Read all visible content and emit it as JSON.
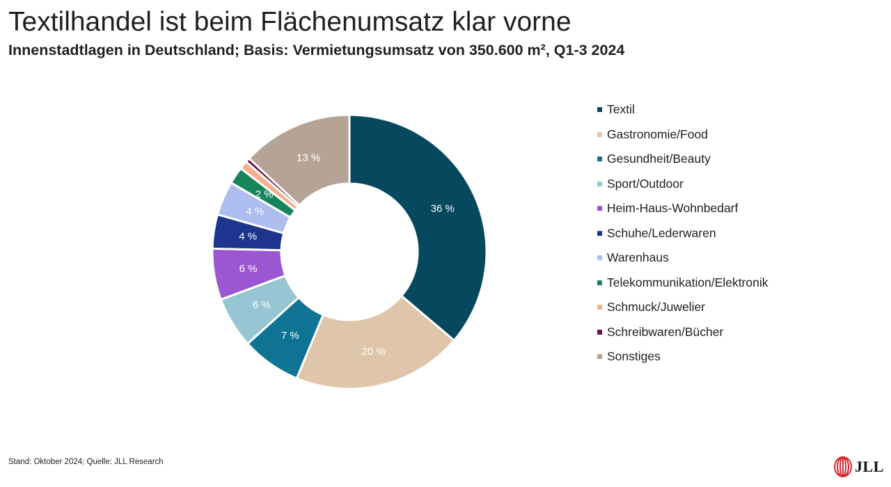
{
  "header": {
    "title": "Textilhandel ist beim Flächenumsatz klar vorne",
    "subtitle": "Innenstadtlagen in Deutschland; Basis: Vermietungsumsatz von 350.600 m², Q1-3 2024"
  },
  "chart_data": {
    "type": "pie",
    "variant": "donut",
    "title": "Textilhandel ist beim Flächenumsatz klar vorne",
    "subtitle": "Innenstadtlagen in Deutschland; Basis: Vermietungsumsatz von 350.600 m², Q1-3 2024",
    "legend_position": "right",
    "categories": [
      "Textil",
      "Gastronomie/Food",
      "Gesundheit/Beauty",
      "Sport/Outdoor",
      "Heim-Haus-Wohnbedarf",
      "Schuhe/Lederwaren",
      "Warenhaus",
      "Telekommunikation/Elektronik",
      "Schmuck/Juwelier",
      "Schreibwaren/Bücher",
      "Sonstiges"
    ],
    "values": [
      36,
      20,
      7,
      6,
      6,
      4,
      4,
      2,
      1,
      0.5,
      13
    ],
    "data_labels": [
      "36 %",
      "20 %",
      "7 %",
      "6 %",
      "6 %",
      "4 %",
      "4 %",
      "2 %",
      "",
      "",
      "13 %"
    ],
    "colors": [
      "#06485e",
      "#dfc6ab",
      "#0f7494",
      "#97c5d3",
      "#9b57d2",
      "#1d358e",
      "#adbdf0",
      "#17845d",
      "#f4b08a",
      "#6b0f46",
      "#b5a495"
    ]
  },
  "footer": {
    "note": "Stand: Oktober 2024; Quelle: JLL Research",
    "logo_text": "JLL"
  }
}
